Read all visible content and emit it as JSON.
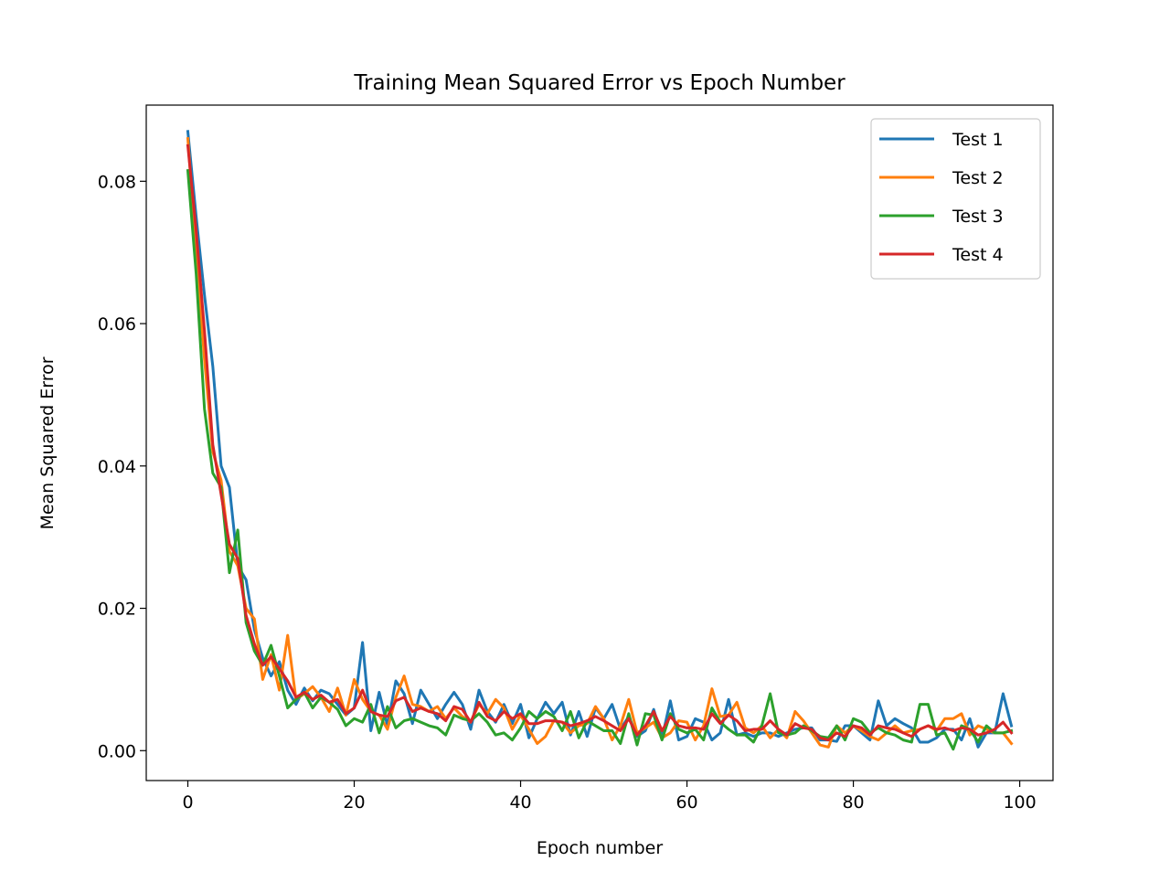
{
  "chart_data": {
    "type": "line",
    "title": "Training Mean Squared Error vs Epoch Number",
    "xlabel": "Epoch number",
    "ylabel": "Mean Squared Error",
    "xlim": [
      -5,
      104
    ],
    "ylim": [
      -0.0042,
      0.0907
    ],
    "xticks": [
      0,
      20,
      40,
      60,
      80,
      100
    ],
    "yticks": [
      0.0,
      0.02,
      0.04,
      0.06,
      0.08
    ],
    "xtick_labels": [
      "0",
      "20",
      "40",
      "60",
      "80",
      "100"
    ],
    "ytick_labels": [
      "0.00",
      "0.02",
      "0.04",
      "0.06",
      "0.08"
    ],
    "grid": false,
    "legend_position": "top-right",
    "x": [
      0,
      1,
      2,
      3,
      4,
      5,
      6,
      7,
      8,
      9,
      10,
      11,
      12,
      13,
      14,
      15,
      16,
      17,
      18,
      19,
      20,
      21,
      22,
      23,
      24,
      25,
      26,
      27,
      28,
      29,
      30,
      31,
      32,
      33,
      34,
      35,
      36,
      37,
      38,
      39,
      40,
      41,
      42,
      43,
      44,
      45,
      46,
      47,
      48,
      49,
      50,
      51,
      52,
      53,
      54,
      55,
      56,
      57,
      58,
      59,
      60,
      61,
      62,
      63,
      64,
      65,
      66,
      67,
      68,
      69,
      70,
      71,
      72,
      73,
      74,
      75,
      76,
      77,
      78,
      79,
      80,
      81,
      82,
      83,
      84,
      85,
      86,
      87,
      88,
      89,
      90,
      91,
      92,
      93,
      94,
      95,
      96,
      97,
      98,
      99
    ],
    "series": [
      {
        "name": "Test 1",
        "color": "#1f77b4",
        "values": [
          0.087,
          0.075,
          0.064,
          0.054,
          0.04,
          0.037,
          0.026,
          0.024,
          0.017,
          0.013,
          0.0105,
          0.0125,
          0.0085,
          0.0065,
          0.0088,
          0.007,
          0.0085,
          0.008,
          0.0065,
          0.005,
          0.006,
          0.0152,
          0.0028,
          0.0082,
          0.0035,
          0.0098,
          0.008,
          0.0038,
          0.0085,
          0.0065,
          0.0045,
          0.0065,
          0.0082,
          0.0065,
          0.003,
          0.0085,
          0.0055,
          0.004,
          0.0065,
          0.0038,
          0.0065,
          0.0018,
          0.0045,
          0.0068,
          0.0052,
          0.0068,
          0.0022,
          0.0055,
          0.002,
          0.006,
          0.0045,
          0.0065,
          0.003,
          0.0048,
          0.002,
          0.0028,
          0.0058,
          0.0018,
          0.007,
          0.0015,
          0.002,
          0.0045,
          0.004,
          0.0015,
          0.0025,
          0.0072,
          0.0022,
          0.0025,
          0.002,
          0.0025,
          0.0025,
          0.002,
          0.0025,
          0.003,
          0.0032,
          0.0032,
          0.0015,
          0.0015,
          0.0013,
          0.0035,
          0.0035,
          0.0025,
          0.0015,
          0.007,
          0.0035,
          0.0045,
          0.0038,
          0.0032,
          0.0012,
          0.0012,
          0.0018,
          0.003,
          0.003,
          0.0015,
          0.0045,
          0.0005,
          0.0025,
          0.0025,
          0.008,
          0.0035
        ]
      },
      {
        "name": "Test 2",
        "color": "#ff7f0e",
        "values": [
          0.086,
          0.07,
          0.055,
          0.042,
          0.038,
          0.028,
          0.026,
          0.02,
          0.0185,
          0.01,
          0.0135,
          0.0085,
          0.0162,
          0.0072,
          0.008,
          0.009,
          0.0075,
          0.0055,
          0.0088,
          0.005,
          0.01,
          0.0072,
          0.0055,
          0.005,
          0.003,
          0.0075,
          0.0105,
          0.0065,
          0.0062,
          0.0055,
          0.0062,
          0.0045,
          0.006,
          0.0048,
          0.004,
          0.0065,
          0.0052,
          0.0072,
          0.006,
          0.003,
          0.005,
          0.003,
          0.001,
          0.002,
          0.0042,
          0.004,
          0.0025,
          0.0035,
          0.0038,
          0.0062,
          0.0045,
          0.0015,
          0.0035,
          0.0072,
          0.0025,
          0.0032,
          0.004,
          0.0018,
          0.0025,
          0.0042,
          0.004,
          0.0015,
          0.0035,
          0.0087,
          0.0048,
          0.005,
          0.0068,
          0.0032,
          0.0025,
          0.0035,
          0.0018,
          0.003,
          0.0018,
          0.0055,
          0.0042,
          0.0025,
          0.0008,
          0.0005,
          0.0035,
          0.0025,
          0.0035,
          0.0028,
          0.002,
          0.0015,
          0.0025,
          0.0035,
          0.0025,
          0.0028,
          0.003,
          0.0035,
          0.0028,
          0.0045,
          0.0045,
          0.0052,
          0.0022,
          0.0035,
          0.003,
          0.0025,
          0.0025,
          0.001
        ]
      },
      {
        "name": "Test 3",
        "color": "#2ca02c",
        "values": [
          0.0815,
          0.067,
          0.048,
          0.039,
          0.037,
          0.025,
          0.031,
          0.018,
          0.014,
          0.012,
          0.0148,
          0.0105,
          0.006,
          0.0072,
          0.0082,
          0.006,
          0.0075,
          0.0068,
          0.0058,
          0.0035,
          0.0045,
          0.004,
          0.0065,
          0.0025,
          0.0062,
          0.0032,
          0.0042,
          0.0045,
          0.004,
          0.0035,
          0.0032,
          0.0022,
          0.005,
          0.0045,
          0.0042,
          0.0052,
          0.004,
          0.0022,
          0.0025,
          0.0015,
          0.0032,
          0.0055,
          0.0045,
          0.0055,
          0.0048,
          0.0028,
          0.0055,
          0.0018,
          0.0042,
          0.0035,
          0.0028,
          0.0028,
          0.001,
          0.0052,
          0.0008,
          0.0052,
          0.005,
          0.0015,
          0.0052,
          0.003,
          0.0025,
          0.003,
          0.0015,
          0.006,
          0.004,
          0.003,
          0.0022,
          0.0022,
          0.0012,
          0.0035,
          0.008,
          0.0025,
          0.0022,
          0.0025,
          0.0035,
          0.0028,
          0.002,
          0.0018,
          0.0035,
          0.0015,
          0.0045,
          0.004,
          0.0025,
          0.0032,
          0.0025,
          0.0022,
          0.0015,
          0.0012,
          0.0065,
          0.0065,
          0.0022,
          0.0025,
          0.0002,
          0.0035,
          0.003,
          0.0012,
          0.0035,
          0.0025,
          0.0025,
          0.0028
        ]
      },
      {
        "name": "Test 4",
        "color": "#d62728",
        "values": [
          0.085,
          0.073,
          0.059,
          0.043,
          0.036,
          0.029,
          0.027,
          0.019,
          0.015,
          0.012,
          0.0132,
          0.0115,
          0.0098,
          0.0075,
          0.0082,
          0.0072,
          0.0078,
          0.0068,
          0.0072,
          0.0052,
          0.006,
          0.0085,
          0.0055,
          0.005,
          0.0048,
          0.007,
          0.0075,
          0.0055,
          0.006,
          0.0055,
          0.0052,
          0.0042,
          0.0062,
          0.0058,
          0.004,
          0.0068,
          0.0048,
          0.0042,
          0.0055,
          0.0045,
          0.0052,
          0.0038,
          0.0038,
          0.0042,
          0.0042,
          0.004,
          0.0035,
          0.0038,
          0.0042,
          0.0048,
          0.0042,
          0.0035,
          0.0028,
          0.0045,
          0.0022,
          0.0035,
          0.0055,
          0.0028,
          0.0048,
          0.0035,
          0.0032,
          0.0032,
          0.003,
          0.0052,
          0.0038,
          0.005,
          0.0042,
          0.0028,
          0.003,
          0.003,
          0.0042,
          0.003,
          0.0022,
          0.0038,
          0.0032,
          0.003,
          0.0018,
          0.0015,
          0.0025,
          0.002,
          0.0035,
          0.0032,
          0.0022,
          0.0035,
          0.0032,
          0.003,
          0.0025,
          0.002,
          0.003,
          0.0035,
          0.003,
          0.0032,
          0.0028,
          0.0032,
          0.003,
          0.0022,
          0.0025,
          0.003,
          0.004,
          0.0025
        ]
      }
    ]
  }
}
